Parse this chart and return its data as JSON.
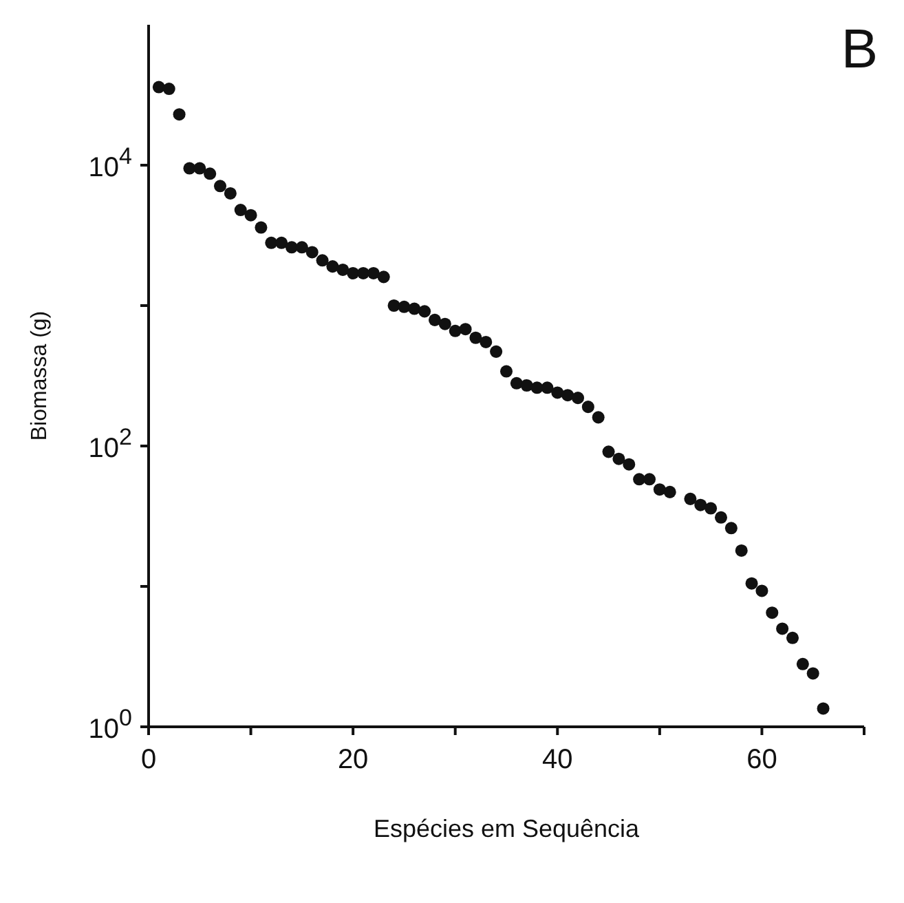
{
  "chart_data": {
    "type": "scatter",
    "xlabel": "Espécies em Sequência",
    "ylabel": "Biomassa (g)",
    "annotations": [
      "B"
    ],
    "log": "y",
    "marker": "circle",
    "xlim": [
      0,
      70
    ],
    "xticks": [
      0,
      {
        "value": 10,
        "label": null
      },
      20,
      {
        "value": 30,
        "label": null
      },
      40,
      {
        "value": 50,
        "label": null
      },
      60,
      {
        "value": 70,
        "label": null
      }
    ],
    "ylim": [
      1,
      100000
    ],
    "yticks": [
      {
        "value": 1,
        "label": "10$^{0}$"
      },
      {
        "value": 10,
        "label": null
      },
      {
        "value": 100,
        "label": "10$^{2}$"
      },
      {
        "value": 1000,
        "label": null
      },
      {
        "value": 10000,
        "label": "10$^{4}$"
      }
    ],
    "series": [
      {
        "color": "#111111",
        "x": [
          1,
          2,
          3,
          4,
          5,
          6,
          7,
          8,
          9,
          10,
          11,
          12,
          13,
          14,
          15,
          16,
          17,
          18,
          19,
          20,
          21,
          22,
          23,
          24,
          25,
          26,
          27,
          28,
          29,
          30,
          31,
          32,
          33,
          34,
          35,
          36,
          37,
          38,
          39,
          40,
          41,
          42,
          43,
          44,
          45,
          46,
          47,
          48,
          49,
          50,
          51,
          53,
          54,
          55,
          56,
          57,
          58,
          59,
          60,
          61,
          62,
          63,
          64,
          65,
          66
        ],
        "values": [
          36000,
          35000,
          23000,
          9500,
          9500,
          8700,
          7100,
          6300,
          4800,
          4400,
          3600,
          2800,
          2800,
          2600,
          2600,
          2400,
          2100,
          1900,
          1800,
          1700,
          1700,
          1700,
          1600,
          1000,
          980,
          950,
          910,
          790,
          740,
          660,
          680,
          590,
          550,
          470,
          340,
          280,
          270,
          260,
          260,
          240,
          230,
          220,
          190,
          160,
          91,
          81,
          74,
          58,
          58,
          49,
          47,
          42,
          38,
          36,
          31,
          26,
          18,
          10.5,
          9.3,
          6.5,
          5.0,
          4.3,
          2.8,
          2.4,
          1.35
        ]
      }
    ]
  }
}
